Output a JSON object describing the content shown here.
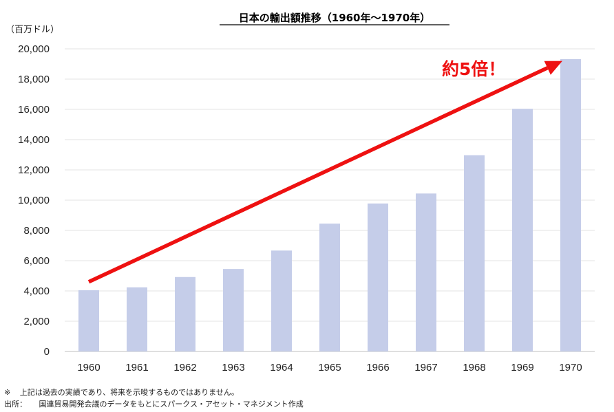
{
  "chart_data": {
    "type": "bar",
    "title": "日本の輸出額推移（1960年～1970年）",
    "unit_label": "（百万ドル）",
    "categories": [
      "1960",
      "1961",
      "1962",
      "1963",
      "1964",
      "1965",
      "1966",
      "1967",
      "1968",
      "1969",
      "1970"
    ],
    "values": [
      4050,
      4240,
      4920,
      5450,
      6670,
      8450,
      9780,
      10440,
      12970,
      16040,
      19320
    ],
    "ylim": [
      0,
      20000
    ],
    "yticks": [
      0,
      2000,
      4000,
      6000,
      8000,
      10000,
      12000,
      14000,
      16000,
      18000,
      20000
    ],
    "ytick_labels": [
      "0",
      "2,000",
      "4,000",
      "6,000",
      "8,000",
      "10,000",
      "12,000",
      "14,000",
      "16,000",
      "18,000",
      "20,000"
    ],
    "grid": true,
    "bar_color": "#c5cde9",
    "annotation": {
      "text": "約5倍！",
      "color": "#ee1111",
      "arrow_from": {
        "category": "1960",
        "value": 4600
      },
      "arrow_to": {
        "category": "1970",
        "value": 19200
      }
    }
  },
  "footnotes": {
    "disclaimer_mark": "※",
    "disclaimer": "上記は過去の実績であり、将来を示唆するものではありません。",
    "source_label": "出所：",
    "source": "国連貿易開発会議のデータをもとにスパークス・アセット・マネジメント作成"
  }
}
